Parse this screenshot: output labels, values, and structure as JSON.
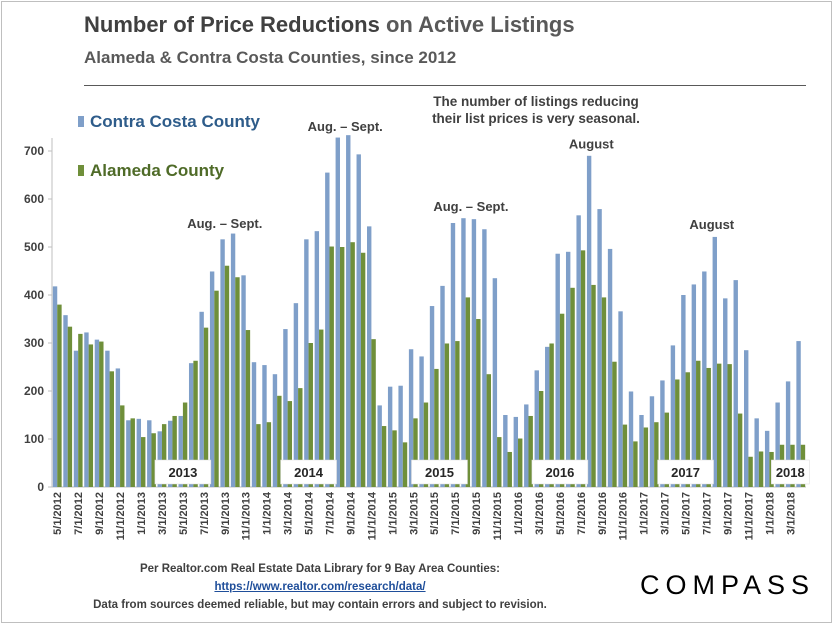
{
  "header": {
    "title_part1": "Number of Price Reductions",
    "title_part2": " on Active Listings",
    "subtitle": "Alameda & Contra Costa Counties, since 2012"
  },
  "chart_data": {
    "type": "bar",
    "ylim": [
      0,
      750
    ],
    "yticks": [
      0,
      100,
      200,
      300,
      400,
      500,
      600,
      700
    ],
    "categories": [
      "5/1/2012",
      "6/1/2012",
      "7/1/2012",
      "8/1/2012",
      "9/1/2012",
      "10/1/2012",
      "11/1/2012",
      "12/1/2012",
      "1/1/2013",
      "2/1/2013",
      "3/1/2013",
      "4/1/2013",
      "5/1/2013",
      "6/1/2013",
      "7/1/2013",
      "8/1/2013",
      "9/1/2013",
      "10/1/2013",
      "11/1/2013",
      "12/1/2013",
      "1/1/2014",
      "2/1/2014",
      "3/1/2014",
      "4/1/2014",
      "5/1/2014",
      "6/1/2014",
      "7/1/2014",
      "8/1/2014",
      "9/1/2014",
      "10/1/2014",
      "11/1/2014",
      "12/1/2014",
      "1/1/2015",
      "2/1/2015",
      "3/1/2015",
      "4/1/2015",
      "5/1/2015",
      "6/1/2015",
      "7/1/2015",
      "8/1/2015",
      "9/1/2015",
      "10/1/2015",
      "11/1/2015",
      "12/1/2015",
      "1/1/2016",
      "2/1/2016",
      "3/1/2016",
      "4/1/2016",
      "5/1/2016",
      "6/1/2016",
      "7/1/2016",
      "8/1/2016",
      "9/1/2016",
      "10/1/2016",
      "11/1/2016",
      "12/1/2016",
      "1/1/2017",
      "2/1/2017",
      "3/1/2017",
      "4/1/2017",
      "5/1/2017",
      "6/1/2017",
      "7/1/2017",
      "8/1/2017",
      "9/1/2017",
      "10/1/2017",
      "11/1/2017",
      "12/1/2017",
      "1/1/2018",
      "2/1/2018",
      "3/1/2018",
      "4/1/2018"
    ],
    "series": [
      {
        "name": "Contra Costa County",
        "color": "#7f9fc9",
        "values": [
          418,
          358,
          284,
          322,
          307,
          284,
          247,
          139,
          142,
          139,
          116,
          138,
          148,
          258,
          365,
          449,
          516,
          528,
          441,
          260,
          254,
          235,
          329,
          383,
          516,
          533,
          655,
          728,
          733,
          693,
          543,
          170,
          209,
          211,
          287,
          272,
          377,
          419,
          550,
          560,
          558,
          537,
          435,
          150,
          146,
          172,
          243,
          292,
          486,
          490,
          566,
          690,
          579,
          496,
          366,
          199,
          150,
          189,
          222,
          295,
          400,
          422,
          449,
          521,
          393,
          431,
          285,
          143,
          117,
          176,
          220,
          304
        ]
      },
      {
        "name": "Alameda County",
        "color": "#6f8f3a",
        "values": [
          380,
          334,
          319,
          297,
          303,
          241,
          170,
          143,
          104,
          112,
          131,
          148,
          176,
          263,
          332,
          409,
          461,
          437,
          327,
          131,
          135,
          190,
          179,
          206,
          300,
          328,
          501,
          500,
          510,
          488,
          308,
          127,
          118,
          93,
          143,
          176,
          246,
          299,
          304,
          395,
          350,
          235,
          104,
          73,
          101,
          148,
          200,
          299,
          361,
          415,
          493,
          421,
          395,
          261,
          130,
          95,
          124,
          135,
          155,
          224,
          239,
          263,
          248,
          257,
          256,
          153,
          63,
          74,
          73,
          88,
          88,
          88
        ]
      }
    ],
    "legend": [
      "Contra Costa County",
      "Alameda County"
    ],
    "year_labels": [
      {
        "label": "2013",
        "center": 12.5
      },
      {
        "label": "2014",
        "center": 24.5
      },
      {
        "label": "2015",
        "center": 37
      },
      {
        "label": "2016",
        "center": 48.5
      },
      {
        "label": "2017",
        "center": 60.5
      },
      {
        "label": "2018",
        "center": 70.5
      }
    ],
    "annotations": [
      {
        "text": "Aug. – Sept.",
        "at": 16.5,
        "value": 540
      },
      {
        "text": "Aug. – Sept.",
        "at": 28,
        "value": 742
      },
      {
        "text": "Aug. – Sept.",
        "at": 40,
        "value": 575
      },
      {
        "text": "August",
        "at": 51.5,
        "value": 705
      },
      {
        "text": "August",
        "at": 63,
        "value": 538
      }
    ],
    "callout": [
      "The number of listings reducing",
      "their list prices is very seasonal."
    ]
  },
  "footer": {
    "line1": "Per Realtor.com Real Estate Data Library for 9 Bay Area Counties:",
    "link": "https://www.realtor.com/research/data/",
    "line3": "Data from sources deemed reliable, but may contain errors and subject to revision.",
    "logo": "COMPASS"
  }
}
